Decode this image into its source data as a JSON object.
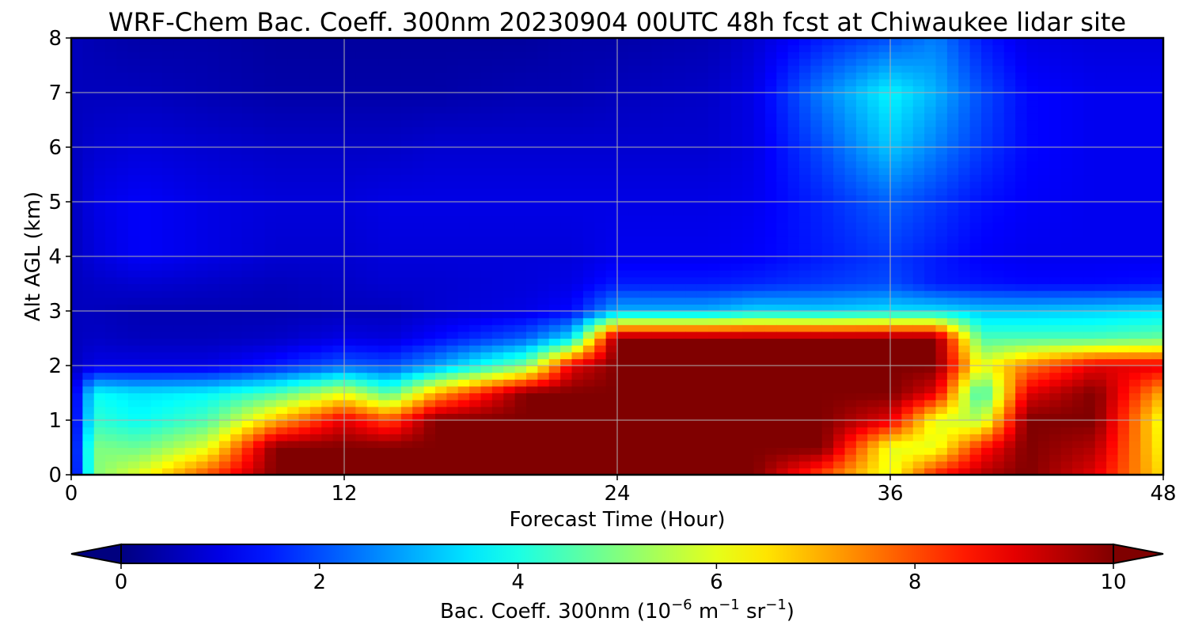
{
  "chart_data": {
    "type": "heatmap",
    "title": "WRF-Chem Bac. Coeff. 300nm  20230904 00UTC 48h fcst at Chiwaukee lidar site",
    "xlabel": "Forecast Time (Hour)",
    "ylabel": "Alt AGL (km)",
    "xlim": [
      0,
      48
    ],
    "ylim": [
      0,
      8
    ],
    "xticks": [
      0,
      12,
      24,
      36,
      48
    ],
    "yticks": [
      0,
      1,
      2,
      3,
      4,
      5,
      6,
      7,
      8
    ],
    "grid": true,
    "colormap": "jet",
    "colorbar": {
      "orientation": "horizontal",
      "placement": "bottom",
      "range": [
        0,
        10
      ],
      "extend": "both",
      "ticks": [
        0,
        2,
        4,
        6,
        8,
        10
      ],
      "label": "Bac. Coeff. 300nm  (10",
      "label_exp1": "−6",
      "label_mid": " m",
      "label_exp2": "−1",
      "label_mid2": " sr",
      "label_exp3": "−1",
      "label_end": ")"
    },
    "altitudes_km": [
      0,
      0.5,
      1,
      1.5,
      2,
      2.5,
      3,
      3.5,
      4,
      5,
      6,
      7,
      8
    ],
    "times_h": [
      0,
      1,
      3,
      6,
      9,
      12,
      14,
      16,
      20,
      22,
      24,
      28,
      30,
      33,
      36,
      38,
      40,
      42,
      45,
      48
    ],
    "values": [
      [
        0.5,
        0.6,
        0.6,
        0.6,
        0.6,
        0.6,
        0.6,
        0.6,
        0.6,
        0.6,
        0.6,
        0.6,
        0.6
      ],
      [
        5.0,
        5.0,
        4.2,
        3.8,
        1.0,
        0.7,
        0.6,
        0.7,
        0.9,
        1.0,
        0.8,
        0.6,
        0.5
      ],
      [
        6.0,
        4.8,
        3.8,
        3.5,
        1.0,
        0.6,
        0.5,
        0.8,
        1.2,
        1.2,
        0.9,
        0.6,
        0.4
      ],
      [
        8.0,
        6.0,
        4.5,
        3.7,
        1.0,
        0.6,
        0.5,
        0.7,
        1.0,
        1.0,
        0.8,
        0.5,
        0.4
      ],
      [
        10.0,
        10.0,
        7.0,
        4.5,
        1.5,
        0.7,
        0.5,
        0.6,
        0.8,
        0.9,
        0.7,
        0.4,
        0.3
      ],
      [
        10.0,
        10.0,
        9.0,
        6.0,
        2.2,
        1.0,
        0.6,
        0.7,
        0.8,
        0.9,
        0.7,
        0.4,
        0.3
      ],
      [
        10.0,
        10.0,
        8.0,
        4.5,
        2.0,
        0.9,
        0.6,
        0.8,
        0.9,
        1.0,
        0.7,
        0.4,
        0.3
      ],
      [
        10.0,
        10.0,
        10.0,
        7.0,
        2.8,
        1.3,
        0.8,
        0.8,
        0.9,
        1.0,
        0.8,
        0.4,
        0.3
      ],
      [
        10.0,
        10.0,
        10.0,
        10.0,
        5.0,
        2.2,
        1.0,
        0.9,
        0.9,
        1.0,
        0.8,
        0.5,
        0.3
      ],
      [
        10.0,
        10.0,
        10.0,
        10.0,
        9.0,
        3.5,
        1.3,
        1.0,
        0.9,
        1.0,
        0.8,
        0.5,
        0.4
      ],
      [
        10.0,
        10.0,
        10.0,
        10.0,
        10.0,
        10.0,
        3.0,
        1.5,
        1.1,
        1.0,
        0.8,
        0.6,
        0.4
      ],
      [
        10.0,
        10.0,
        10.0,
        10.0,
        10.0,
        10.0,
        3.0,
        1.5,
        1.1,
        1.0,
        0.8,
        0.7,
        0.5
      ],
      [
        10.0,
        10.0,
        10.0,
        10.0,
        10.0,
        10.0,
        3.4,
        1.6,
        1.2,
        1.1,
        1.0,
        1.0,
        0.8
      ],
      [
        8.0,
        10.0,
        10.0,
        10.0,
        10.0,
        10.0,
        3.3,
        1.8,
        1.5,
        1.6,
        2.0,
        2.5,
        1.5
      ],
      [
        6.0,
        6.0,
        9.0,
        10.0,
        10.0,
        10.0,
        3.5,
        2.0,
        1.8,
        2.2,
        3.2,
        3.7,
        2.0
      ],
      [
        8.5,
        6.0,
        6.0,
        9.0,
        10.0,
        10.0,
        3.5,
        1.5,
        1.5,
        1.8,
        2.5,
        3.0,
        2.5
      ],
      [
        9.5,
        8.5,
        5.5,
        4.0,
        6.0,
        4.5,
        3.2,
        1.4,
        1.2,
        1.4,
        1.8,
        2.0,
        1.5
      ],
      [
        10.0,
        10.0,
        10.0,
        9.0,
        7.5,
        4.5,
        3.2,
        1.3,
        1.1,
        1.2,
        1.3,
        1.3,
        1.0
      ],
      [
        9.0,
        9.5,
        10.0,
        10.0,
        9.0,
        4.5,
        3.3,
        1.3,
        1.1,
        1.1,
        1.1,
        1.1,
        0.9
      ],
      [
        6.5,
        6.2,
        6.0,
        7.0,
        9.0,
        4.8,
        3.5,
        1.4,
        1.1,
        1.1,
        1.1,
        1.1,
        0.9
      ]
    ]
  }
}
